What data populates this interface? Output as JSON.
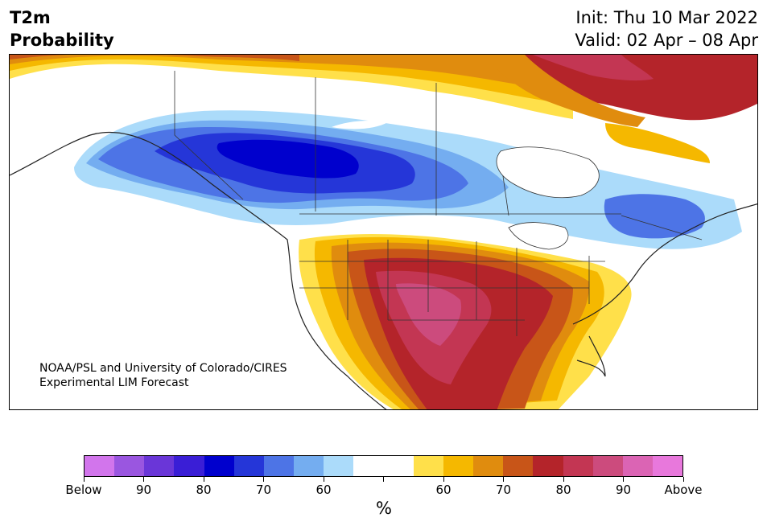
{
  "header": {
    "title_line1": "T2m",
    "title_line2": "Probability",
    "init": "Init: Thu 10 Mar 2022",
    "valid": "Valid: 02 Apr – 08 Apr"
  },
  "credit": {
    "line1": "NOAA/PSL and University of Colorado/CIRES",
    "line2": "Experimental LIM Forecast"
  },
  "colorbar": {
    "colors": [
      "#d275ec",
      "#9a56e0",
      "#6a36d8",
      "#3a1ed6",
      "#0000cd",
      "#2536d8",
      "#4d74e6",
      "#74adf0",
      "#abdbfa",
      "#ffffff",
      "#ffffff",
      "#ffe04a",
      "#f5b800",
      "#e08c0e",
      "#c85518",
      "#b4242a",
      "#c33653",
      "#cc4b7d",
      "#db64b4",
      "#e878dc"
    ],
    "tick_labels": [
      "Below",
      "90",
      "80",
      "70",
      "60",
      "",
      "60",
      "70",
      "80",
      "90",
      "Above"
    ],
    "unit": "%"
  },
  "map": {
    "region": "North America",
    "legend_meaning": "Below / Above normal temperature probability"
  }
}
